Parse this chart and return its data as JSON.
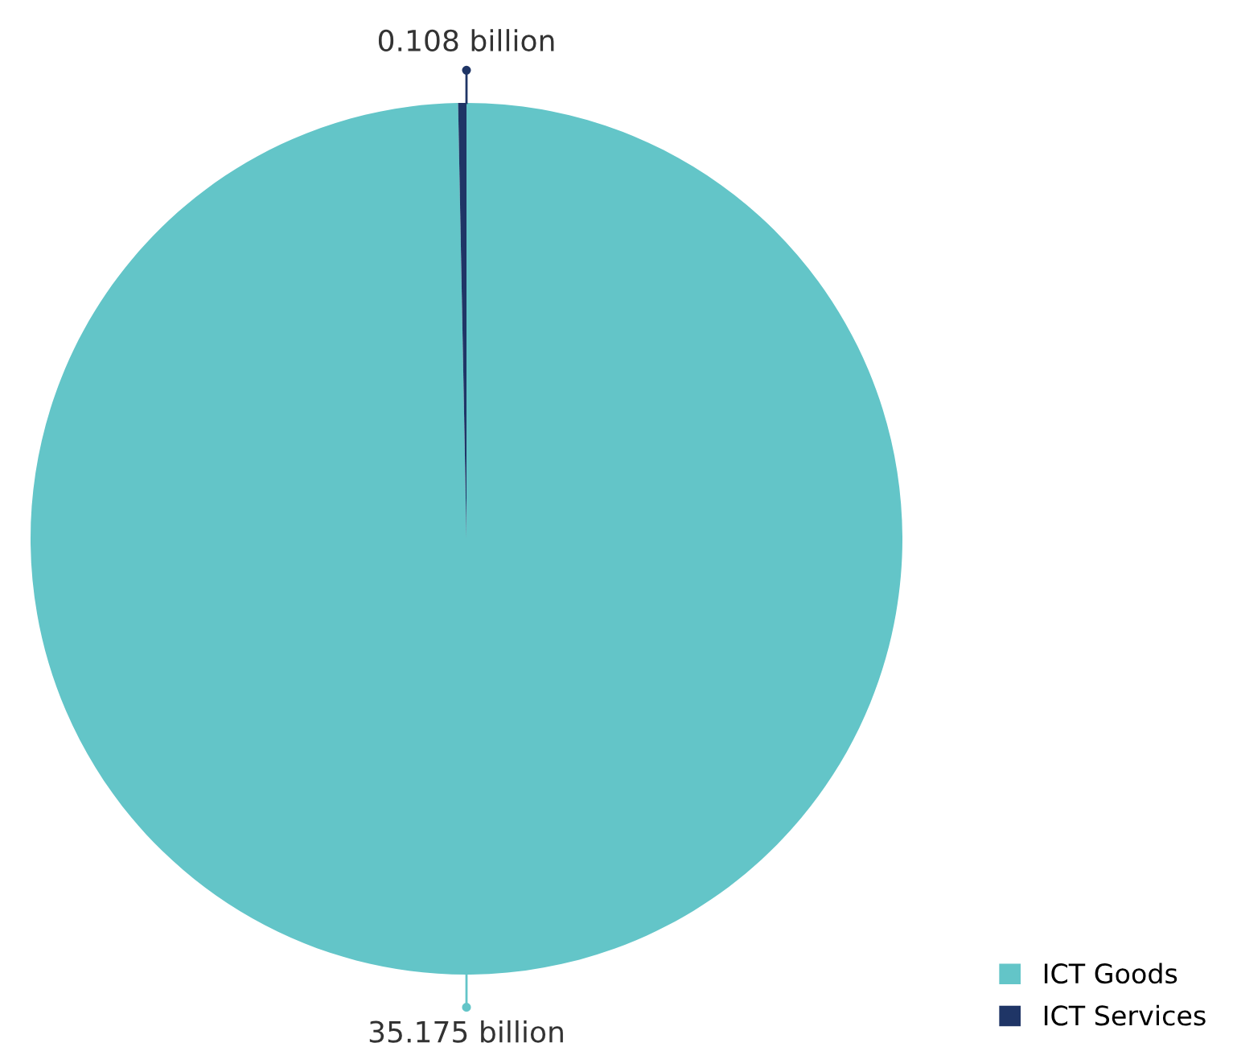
{
  "chart_data": {
    "type": "pie",
    "categories": [
      "ICT Goods",
      "ICT Services"
    ],
    "values": [
      35.175,
      0.108
    ],
    "colors": [
      "#63c5c8",
      "#1f3566"
    ],
    "value_labels": [
      "35.175 billion",
      "0.108 billion"
    ],
    "legend": "bottom right"
  }
}
